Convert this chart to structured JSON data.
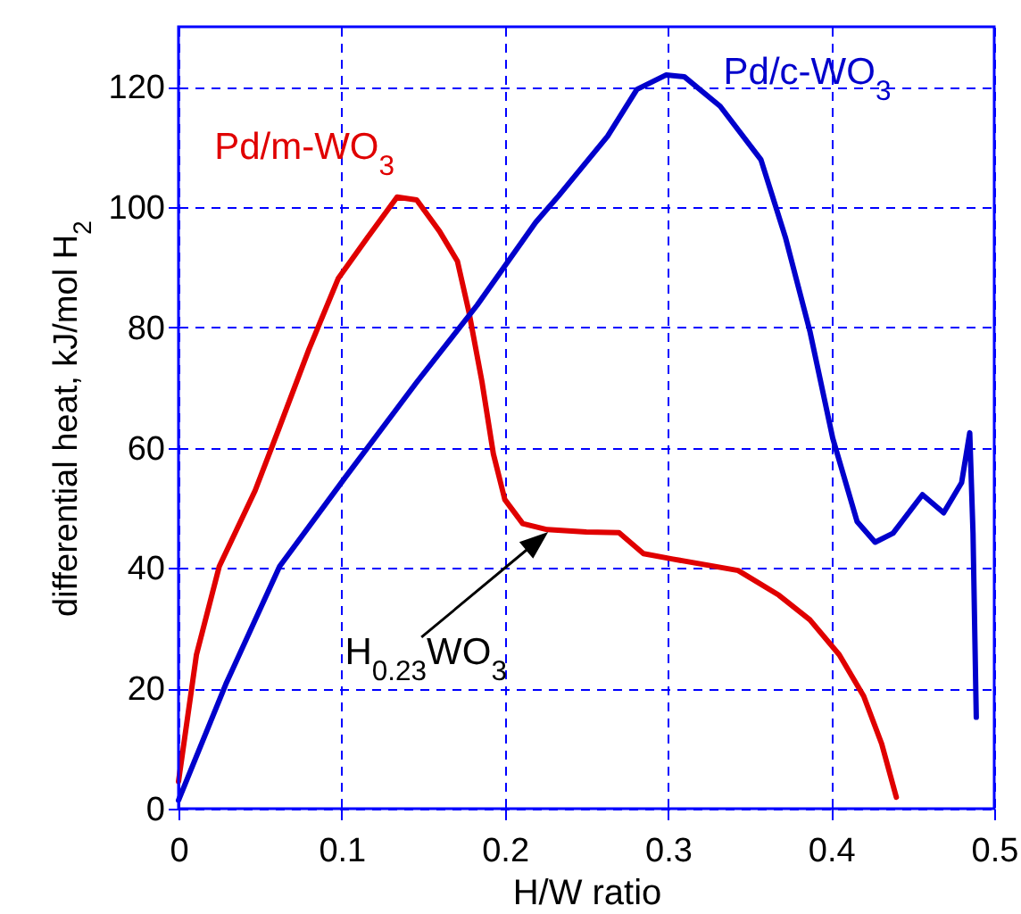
{
  "chart_data": {
    "type": "line",
    "xlabel": "H/W ratio",
    "ylabel": "differential heat, kJ/mol H$_{2}$",
    "xlim": [
      0,
      0.5
    ],
    "ylim": [
      0,
      130
    ],
    "xticks": [
      0,
      0.1,
      0.2,
      0.3,
      0.4,
      0.5
    ],
    "yticks": [
      0,
      20,
      40,
      60,
      80,
      100,
      120
    ],
    "grid": true,
    "marker": "none",
    "line_style": "solid",
    "series": [
      {
        "name": "Pd/m-WO$_{3}$",
        "color": "#e00000",
        "x": [
          0,
          0.011,
          0.025,
          0.047,
          0.061,
          0.08,
          0.098,
          0.116,
          0.134,
          0.146,
          0.16,
          0.171,
          0.178,
          0.186,
          0.193,
          0.2,
          0.211,
          0.226,
          0.25,
          0.27,
          0.285,
          0.303,
          0.343,
          0.368,
          0.387,
          0.405,
          0.42,
          0.431,
          0.44
        ],
        "values": [
          4.5,
          25.6,
          40.3,
          52.9,
          62.8,
          76.4,
          88.2,
          95,
          101.7,
          101.2,
          96,
          91,
          82.6,
          71,
          59,
          51.4,
          47.4,
          46.4,
          46,
          45.9,
          42.4,
          41.5,
          39.6,
          35.5,
          31.4,
          25.6,
          18.7,
          10.8,
          1.9
        ]
      },
      {
        "name": "Pd/c-WO$_{3}$",
        "color": "#0000cc",
        "x": [
          0,
          0.029,
          0.062,
          0.102,
          0.146,
          0.183,
          0.219,
          0.233,
          0.263,
          0.281,
          0.299,
          0.31,
          0.332,
          0.357,
          0.372,
          0.387,
          0.401,
          0.416,
          0.427,
          0.438,
          0.456,
          0.469,
          0.48,
          0.485,
          0.487,
          0.489
        ],
        "values": [
          1.4,
          20.7,
          40.3,
          55,
          70.9,
          83.7,
          97.5,
          101.9,
          111.8,
          119.6,
          122,
          121.7,
          116.8,
          107.9,
          95,
          79.4,
          61.6,
          47.7,
          44.3,
          45.8,
          52.2,
          49.2,
          54.2,
          62.5,
          45.8,
          15.2
        ]
      }
    ],
    "annotations": [
      {
        "text": "H$_{0.23}$WO$_{3}$",
        "x": 0.2265,
        "y": 46
      }
    ]
  }
}
